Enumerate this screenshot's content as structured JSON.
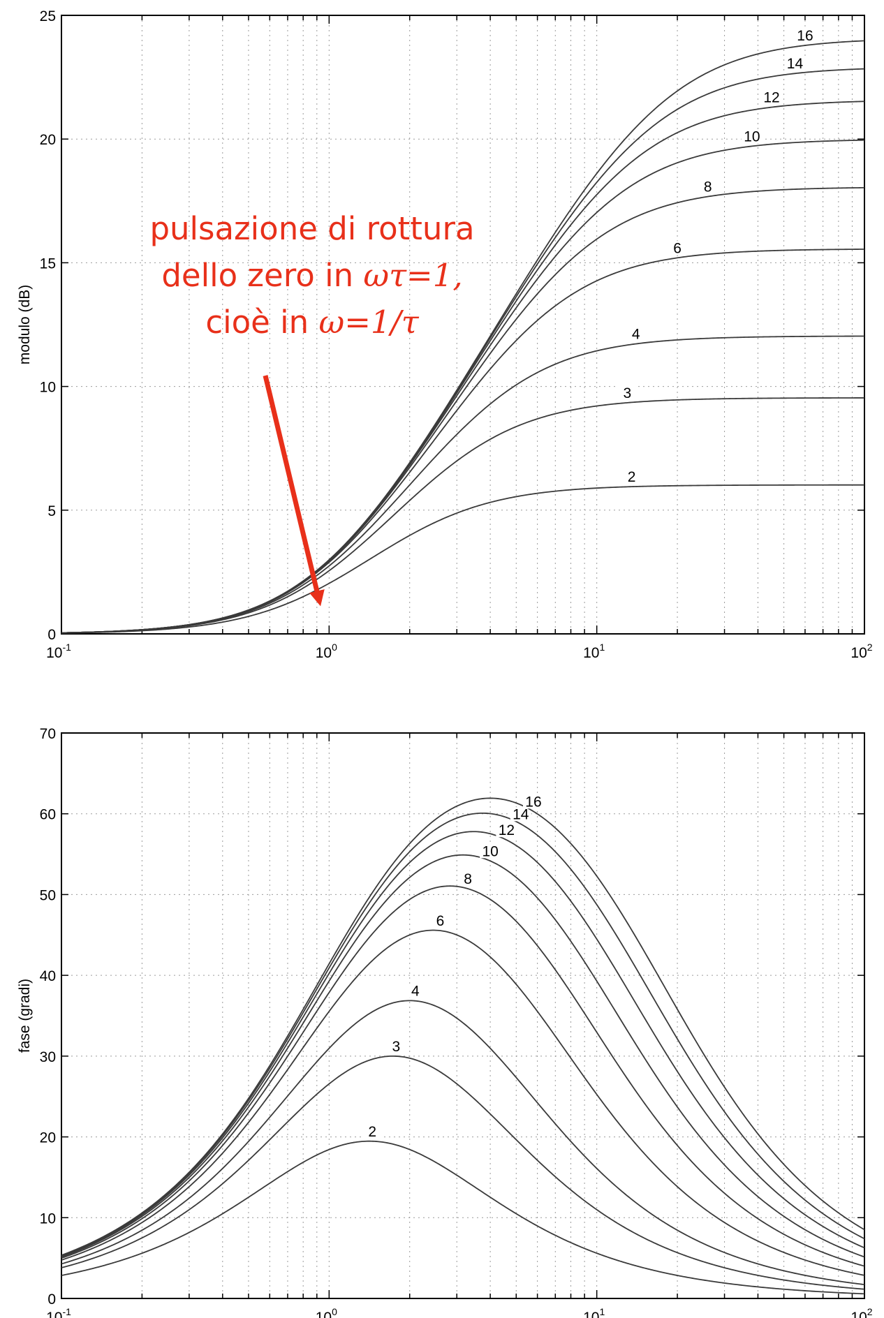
{
  "chart_data": [
    {
      "type": "line",
      "ylabel": "modulo (dB)",
      "xscale": "log",
      "xlim": [
        0.1,
        100
      ],
      "ylim": [
        0,
        25
      ],
      "xticks": [
        0.1,
        1,
        10,
        100
      ],
      "xtick_labels": [
        "10-1",
        "100",
        "101",
        "102"
      ],
      "yticks": [
        0,
        5,
        10,
        15,
        20,
        25
      ],
      "ytick_labels": [
        "0",
        "5",
        "10",
        "15",
        "20",
        "25"
      ],
      "grid": true,
      "function": "magnitude_db",
      "series": [
        {
          "name": "2",
          "m": 2,
          "label_x": 13.5
        },
        {
          "name": "3",
          "m": 3,
          "label_x": 13.0
        },
        {
          "name": "4",
          "m": 4,
          "label_x": 14.0
        },
        {
          "name": "6",
          "m": 6,
          "label_x": 20.0
        },
        {
          "name": "8",
          "m": 8,
          "label_x": 26.0
        },
        {
          "name": "10",
          "m": 10,
          "label_x": 38.0
        },
        {
          "name": "12",
          "m": 12,
          "label_x": 45.0
        },
        {
          "name": "14",
          "m": 14,
          "label_x": 55.0
        },
        {
          "name": "16",
          "m": 16,
          "label_x": 60.0
        }
      ],
      "annotation": {
        "line1": "pulsazione di rottura",
        "line2_text": "dello zero in ",
        "line2_math": "ωτ=1,",
        "line3_text": "cioè in ",
        "line3_math": "ω=1/τ",
        "color": "#e8301a",
        "arrow_tip": {
          "x": 0.92,
          "y": 1.3
        }
      }
    },
    {
      "type": "line",
      "ylabel": "fase (gradi)",
      "xscale": "log",
      "xlim": [
        0.1,
        100
      ],
      "ylim": [
        0,
        70
      ],
      "xticks": [
        0.1,
        1,
        10,
        100
      ],
      "xtick_labels": [
        "10-1",
        "100",
        "101",
        "102"
      ],
      "yticks": [
        0,
        10,
        20,
        30,
        40,
        50,
        60,
        70
      ],
      "ytick_labels": [
        "0",
        "10",
        "20",
        "30",
        "40",
        "50",
        "60",
        "70"
      ],
      "grid": true,
      "function": "phase_deg",
      "series": [
        {
          "name": "2",
          "m": 2,
          "label_x": 1.45
        },
        {
          "name": "3",
          "m": 3,
          "label_x": 1.78
        },
        {
          "name": "4",
          "m": 4,
          "label_x": 2.1
        },
        {
          "name": "6",
          "m": 6,
          "label_x": 2.6
        },
        {
          "name": "8",
          "m": 8,
          "label_x": 3.3
        },
        {
          "name": "10",
          "m": 10,
          "label_x": 4.0
        },
        {
          "name": "12",
          "m": 12,
          "label_x": 4.6
        },
        {
          "name": "14",
          "m": 14,
          "label_x": 5.2
        },
        {
          "name": "16",
          "m": 16,
          "label_x": 5.8
        }
      ]
    }
  ]
}
